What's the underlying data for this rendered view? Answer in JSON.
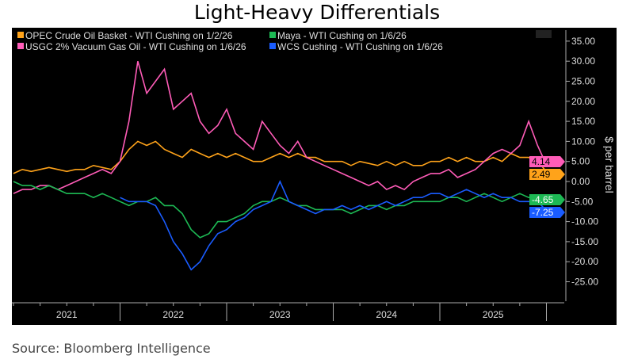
{
  "chart_data": {
    "type": "line",
    "title": "Light-Heavy Differentials",
    "ylabel": "$ per barrel",
    "ylim": [
      -28,
      37
    ],
    "yticks": [
      "35.00",
      "30.00",
      "25.00",
      "20.00",
      "15.00",
      "10.00",
      "5.00",
      "0.00",
      "-5.00",
      "-10.00",
      "-15.00",
      "-20.00",
      "-25.00"
    ],
    "ytick_values": [
      35,
      30,
      25,
      20,
      15,
      10,
      5,
      0,
      -5,
      -10,
      -15,
      -20,
      -25
    ],
    "x_start": "2021-01",
    "x_end": "2026-01",
    "x_step": "month",
    "xticks": [
      "2021",
      "2022",
      "2023",
      "2024",
      "2025"
    ],
    "grid": false,
    "legend_position": "top-left",
    "series": [
      {
        "name": "OPEC Crude Oil Basket - WTI Cushing on 1/2/26",
        "color": "#ffa31a",
        "last": "2.49",
        "values": [
          2,
          3,
          2.5,
          3,
          3.5,
          3,
          2.5,
          3,
          3,
          4,
          3.5,
          3,
          5,
          8,
          10,
          9,
          10,
          8,
          7,
          6,
          8,
          7,
          6,
          7,
          6,
          7,
          6,
          5,
          5,
          6,
          7,
          6,
          7,
          6,
          6,
          5,
          5,
          5,
          4,
          5,
          4.5,
          4,
          5,
          4,
          5,
          4,
          4,
          5,
          5,
          6,
          5,
          6,
          5,
          5,
          6,
          5,
          7,
          6,
          6,
          5,
          2.49
        ]
      },
      {
        "name": "USGC 2% Vacuum Gas Oil - WTI Cushing on 1/6/26",
        "color": "#ff5cb8",
        "last": "4.14",
        "values": [
          -3,
          -2,
          -2,
          -1,
          -1,
          -2,
          -1,
          0,
          1,
          2,
          3,
          2,
          5,
          15,
          30,
          22,
          25,
          28,
          18,
          20,
          22,
          15,
          12,
          14,
          18,
          12,
          10,
          8,
          15,
          12,
          9,
          7,
          10,
          6,
          5,
          4,
          3,
          2,
          1,
          0,
          -1,
          0,
          -2,
          -1,
          -2,
          0,
          1,
          2,
          2,
          3,
          1,
          2,
          3,
          5,
          7,
          8,
          7,
          9,
          15,
          9,
          4.14
        ]
      },
      {
        "name": "Maya - WTI Cushing on 1/6/26",
        "color": "#1db954",
        "last": "-4.65",
        "values": [
          0,
          -1,
          -1,
          -2,
          -1,
          -2,
          -3,
          -3,
          -3,
          -4,
          -3,
          -4,
          -5,
          -6,
          -5,
          -5,
          -4,
          -6,
          -6,
          -8,
          -12,
          -14,
          -13,
          -10,
          -10,
          -9,
          -8,
          -6,
          -5,
          -5,
          -4,
          -5,
          -6,
          -6,
          -7,
          -7,
          -7,
          -7,
          -8,
          -7,
          -6,
          -6,
          -7,
          -6,
          -6,
          -5,
          -5,
          -5,
          -5,
          -4,
          -4,
          -5,
          -4,
          -3,
          -4,
          -5,
          -4,
          -3,
          -4,
          -4,
          -4.65
        ]
      },
      {
        "name": "WCS Cushing - WTI Cushing  on 1/6/26",
        "color": "#1a5cff",
        "last": "-7.25",
        "values": [
          null,
          null,
          null,
          null,
          null,
          null,
          null,
          null,
          null,
          null,
          null,
          null,
          -4,
          -5,
          -5,
          -5,
          -6,
          -10,
          -15,
          -18,
          -22,
          -20,
          -16,
          -13,
          -12,
          -10,
          -9,
          -7,
          -6,
          -5,
          0,
          -5,
          -6,
          -7,
          -8,
          -7,
          -7,
          -6,
          -7,
          -6,
          -7,
          -6,
          -5,
          -6,
          -5,
          -4,
          -4,
          -3,
          -3,
          -4,
          -3,
          -2,
          -3,
          -4,
          -3,
          -4,
          -4,
          -5,
          -5,
          -5,
          -7.25
        ]
      }
    ]
  },
  "source": "Source: Bloomberg Intelligence"
}
